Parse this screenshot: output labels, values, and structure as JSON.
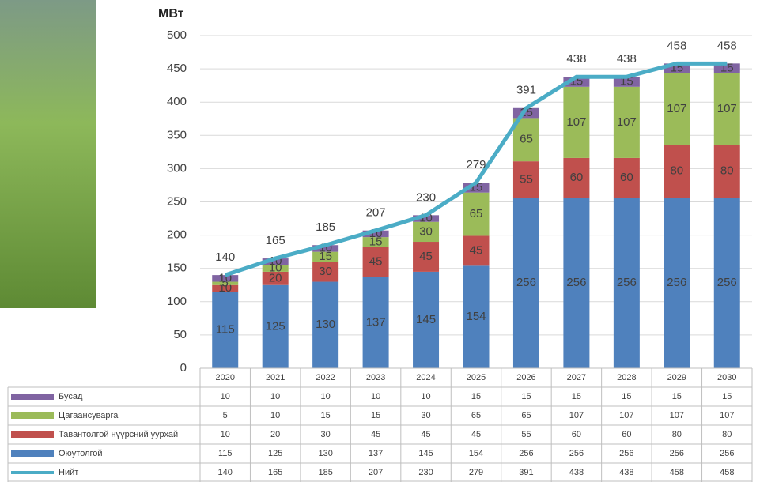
{
  "chart_data": {
    "type": "bar",
    "stacked": true,
    "y_label": "МВт",
    "categories": [
      "2020",
      "2021",
      "2022",
      "2023",
      "2024",
      "2025",
      "2026",
      "2027",
      "2028",
      "2029",
      "2030"
    ],
    "series": [
      {
        "name": "Оюутолгой",
        "color": "#4f81bd",
        "values": [
          115,
          125,
          130,
          137,
          145,
          154,
          256,
          256,
          256,
          256,
          256
        ]
      },
      {
        "name": "Тавантолгой нүүрсний уурхай",
        "color": "#c0504d",
        "values": [
          10,
          20,
          30,
          45,
          45,
          45,
          55,
          60,
          60,
          80,
          80
        ]
      },
      {
        "name": "Цагаансуварга",
        "color": "#9bbb59",
        "values": [
          5,
          10,
          15,
          15,
          30,
          65,
          65,
          107,
          107,
          107,
          107
        ]
      },
      {
        "name": "Бусад",
        "color": "#8064a2",
        "values": [
          10,
          10,
          10,
          10,
          10,
          15,
          15,
          15,
          15,
          15,
          15
        ]
      },
      {
        "name": "Нийт",
        "color": "#4bacc6",
        "type": "line",
        "values": [
          140,
          165,
          185,
          207,
          230,
          279,
          391,
          438,
          438,
          458,
          458
        ]
      }
    ],
    "ylim": [
      0,
      500
    ],
    "yticks": [
      0,
      50,
      100,
      150,
      200,
      250,
      300,
      350,
      400,
      450,
      500
    ],
    "grid": true,
    "data_table": true
  }
}
